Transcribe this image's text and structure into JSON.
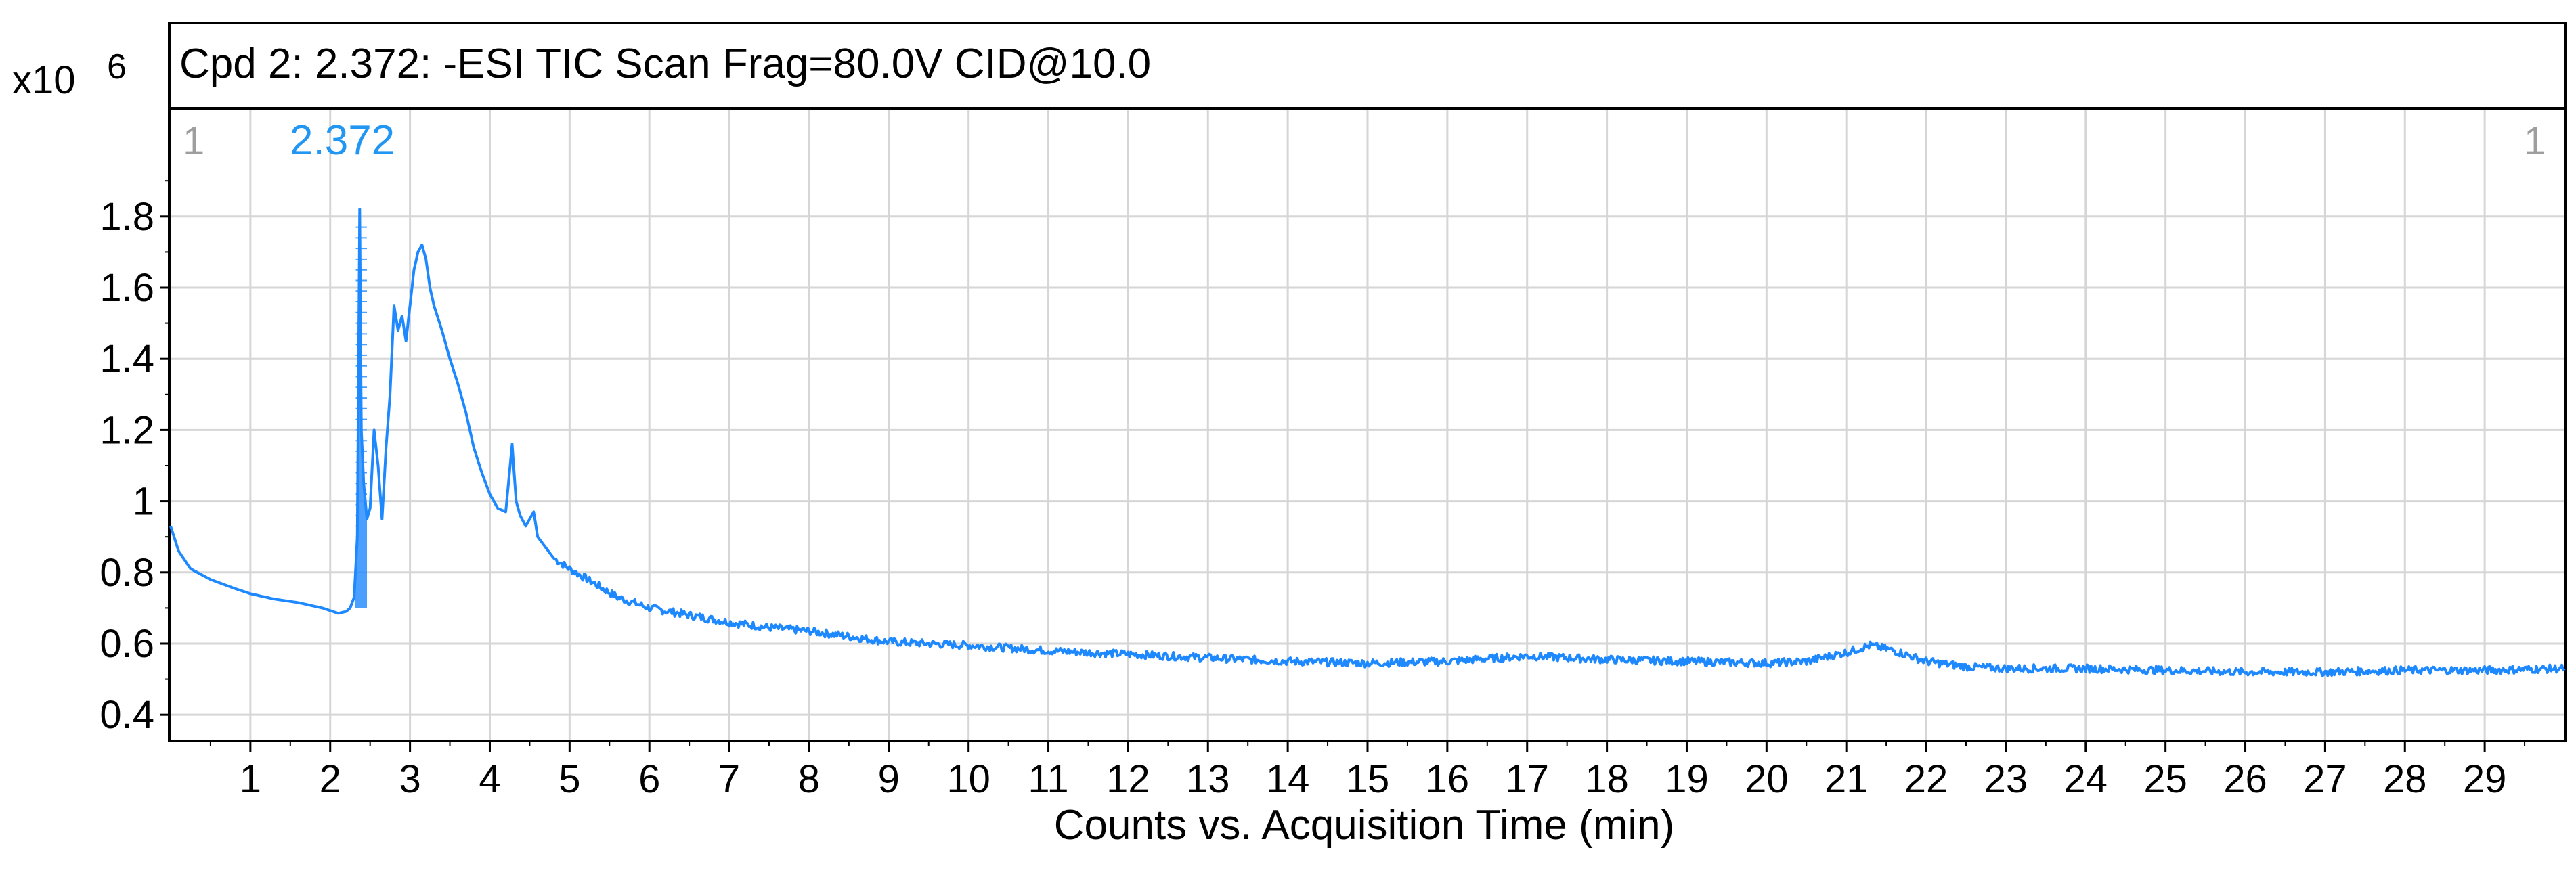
{
  "chart_data": {
    "type": "line",
    "title": "Cpd 2: 2.372: -ESI TIC Scan Frag=80.0V CID@10.0",
    "xlabel": "Counts vs. Acquisition Time (min)",
    "ylabel": "",
    "y_multiplier": "x10",
    "y_exponent": "6",
    "xlim": [
      0,
      30
    ],
    "ylim": [
      0.33,
      2.1
    ],
    "grid": true,
    "x_ticks": [
      1,
      2,
      3,
      4,
      5,
      6,
      7,
      8,
      9,
      10,
      11,
      12,
      13,
      14,
      15,
      16,
      17,
      18,
      19,
      20,
      21,
      22,
      23,
      24,
      25,
      26,
      27,
      28,
      29
    ],
    "y_ticks": [
      0.4,
      0.6,
      0.8,
      1,
      1.2,
      1.4,
      1.6,
      1.8
    ],
    "y_tick_labels": [
      "0.4",
      "0.6",
      "0.8",
      "1",
      "1.2",
      "1.4",
      "1.6",
      "1.8"
    ],
    "peak_label": "2.372",
    "corner_label_left": "1",
    "corner_label_right": "1",
    "line_color": "#1e88ff",
    "peak_label_color": "#2196f3",
    "series": [
      {
        "x": [
          0,
          0.1,
          0.25,
          0.5,
          0.8,
          1.0,
          1.3,
          1.6,
          1.9,
          2.1,
          2.2,
          2.25,
          2.3,
          2.34,
          2.37,
          2.39,
          2.42,
          2.46,
          2.5,
          2.55,
          2.6,
          2.65,
          2.7,
          2.75,
          2.8,
          2.85,
          2.9,
          2.95,
          3.0,
          3.05,
          3.1,
          3.15,
          3.2,
          3.25,
          3.3,
          3.4,
          3.5,
          3.6,
          3.7,
          3.8,
          3.9,
          4.0,
          4.1,
          4.2,
          4.28,
          4.33,
          4.38,
          4.45,
          4.55,
          4.6,
          4.7,
          4.8,
          5.0,
          5.3,
          5.6,
          6.0,
          6.5,
          7.0,
          7.5,
          8.0,
          8.5,
          9.0,
          9.5,
          10.0,
          11.0,
          12.0,
          13.0,
          14.0,
          15.0,
          16.0,
          17.0,
          18.0,
          19.0,
          20.0,
          20.5,
          21.0,
          21.3,
          21.6,
          22.0,
          22.5,
          23.0,
          24.0,
          25.0,
          26.0,
          27.0,
          28.0,
          29.0,
          30.0
        ],
        "y": [
          0.93,
          0.86,
          0.81,
          0.78,
          0.755,
          0.74,
          0.725,
          0.715,
          0.7,
          0.685,
          0.69,
          0.7,
          0.73,
          0.9,
          1.82,
          1.2,
          1.05,
          0.95,
          0.98,
          1.2,
          1.1,
          0.95,
          1.15,
          1.3,
          1.55,
          1.48,
          1.52,
          1.45,
          1.55,
          1.65,
          1.7,
          1.72,
          1.68,
          1.6,
          1.55,
          1.48,
          1.4,
          1.33,
          1.25,
          1.15,
          1.08,
          1.02,
          0.98,
          0.97,
          1.16,
          1.0,
          0.96,
          0.93,
          0.97,
          0.9,
          0.87,
          0.84,
          0.81,
          0.77,
          0.73,
          0.7,
          0.68,
          0.66,
          0.645,
          0.635,
          0.62,
          0.605,
          0.6,
          0.595,
          0.58,
          0.57,
          0.56,
          0.55,
          0.545,
          0.55,
          0.565,
          0.555,
          0.55,
          0.545,
          0.55,
          0.575,
          0.595,
          0.58,
          0.55,
          0.535,
          0.53,
          0.53,
          0.525,
          0.52,
          0.52,
          0.525,
          0.525,
          0.53
        ]
      }
    ]
  }
}
